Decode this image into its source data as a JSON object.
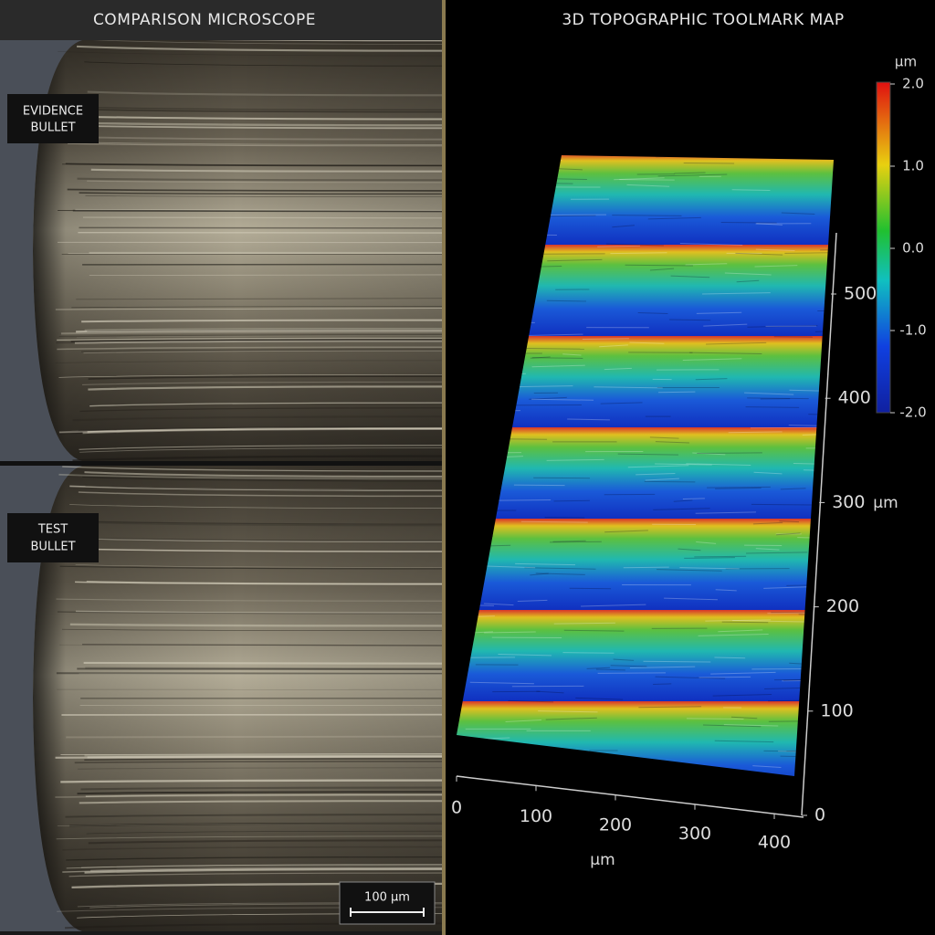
{
  "left_panel": {
    "title": "COMPARISON MICROSCOPE",
    "top_label": [
      "EVIDENCE",
      "BULLET"
    ],
    "bottom_label": [
      "TEST",
      "BULLET"
    ],
    "scale_bar": "100 µm"
  },
  "right_panel": {
    "title": "3D TOPOGRAPHIC TOOLMARK MAP",
    "colorbar": {
      "unit": "µm",
      "ticks": [
        "2.0",
        "1.0",
        "0.0",
        "-1.0",
        "-2.0"
      ]
    },
    "x_axis": {
      "label": "µm",
      "ticks": [
        0,
        100,
        200,
        300,
        400
      ]
    },
    "y_axis": {
      "label": "µm",
      "ticks": [
        0,
        100,
        200,
        300,
        400,
        500
      ]
    }
  }
}
